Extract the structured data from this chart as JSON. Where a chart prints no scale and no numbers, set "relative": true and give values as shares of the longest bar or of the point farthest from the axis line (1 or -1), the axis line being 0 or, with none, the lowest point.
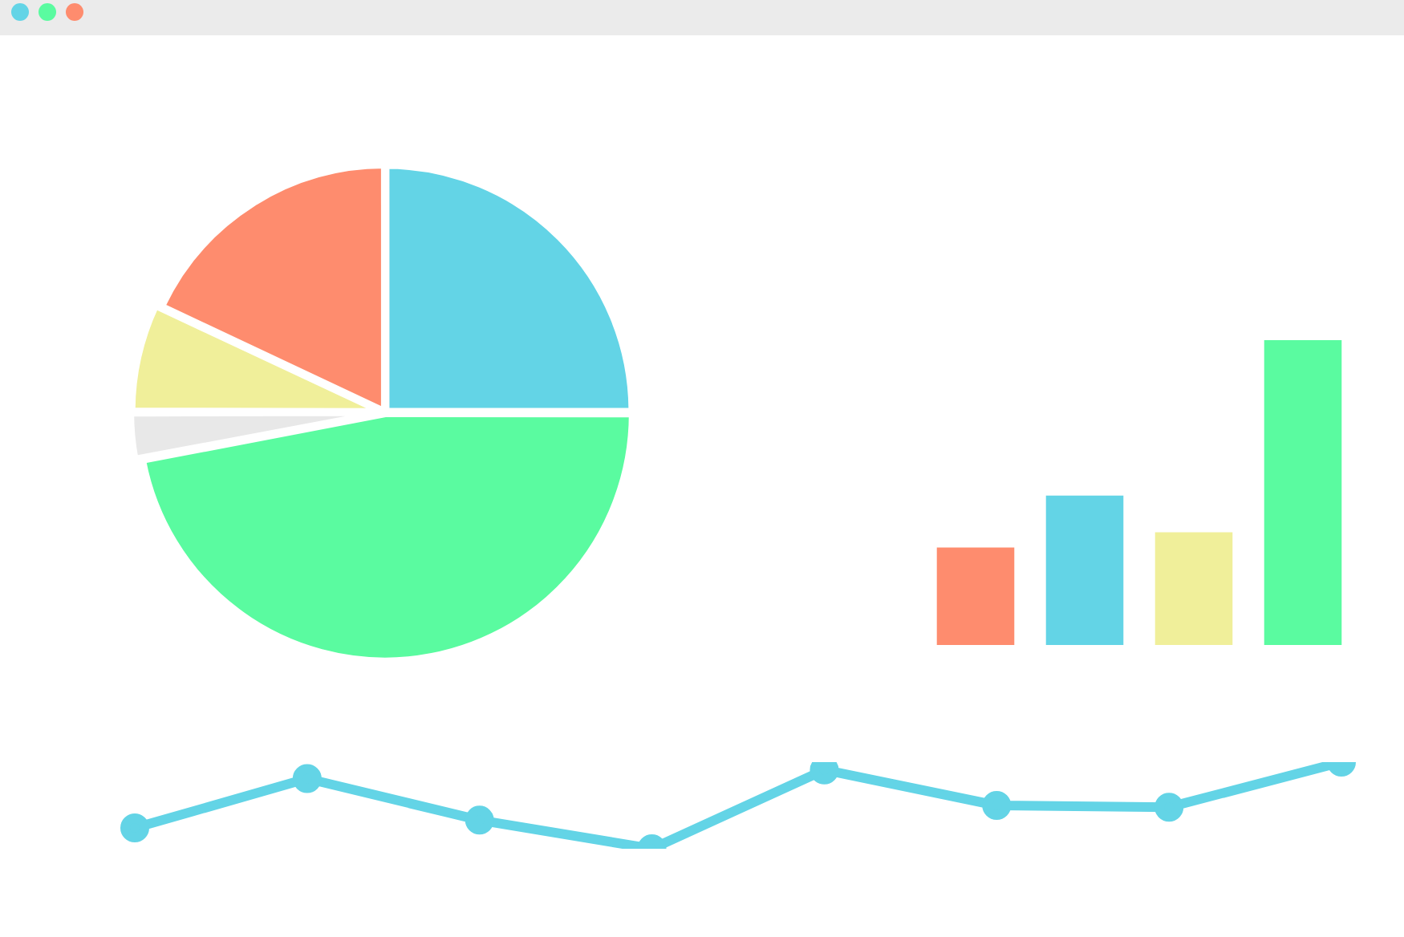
{
  "chart_data": [
    {
      "type": "pie",
      "categories": [
        null,
        null,
        null,
        null,
        null
      ],
      "values": [
        25,
        47,
        3,
        7,
        18
      ],
      "colors": [
        "#63d4e6",
        "#5afba0",
        "#e8e8e8",
        "#f0ef9a",
        "#fe8c6e"
      ]
    },
    {
      "type": "bar",
      "relative": true,
      "categories": [
        null,
        null,
        null,
        null
      ],
      "values": [
        0.32,
        0.49,
        0.37,
        1
      ],
      "colors": [
        "#fe8c6e",
        "#63d4e6",
        "#f0ef9a",
        "#5afba0"
      ]
    },
    {
      "type": "line",
      "relative": true,
      "marker": "circle",
      "categories": [
        null,
        null,
        null,
        null,
        null,
        null,
        null,
        null
      ],
      "values": [
        0.24,
        0.81,
        0.33,
        0,
        0.91,
        0.5,
        0.48,
        1
      ],
      "color": "#63d4e6"
    }
  ]
}
